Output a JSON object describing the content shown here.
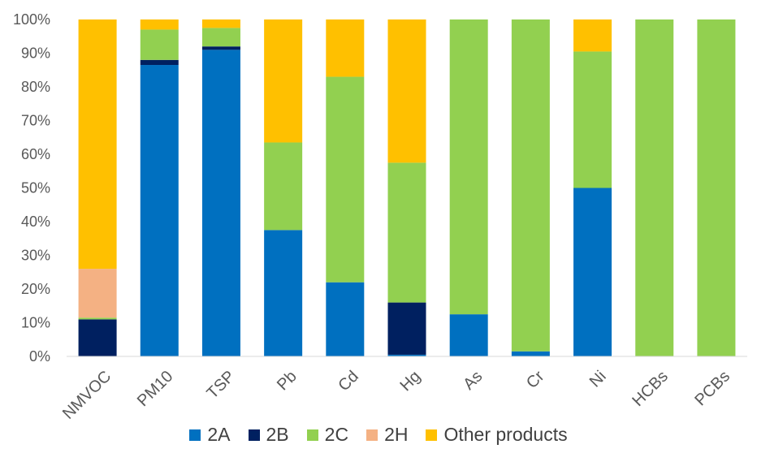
{
  "chart_data": {
    "type": "bar",
    "stacked": true,
    "percent": true,
    "categories": [
      "NMVOC",
      "PM10",
      "TSP",
      "Pb",
      "Cd",
      "Hg",
      "As",
      "Cr",
      "Ni",
      "HCBs",
      "PCBs"
    ],
    "series": [
      {
        "name": "2A",
        "color": "#0070C0",
        "values": [
          0,
          86.5,
          91,
          37.5,
          22,
          0.5,
          12.5,
          1.5,
          50,
          0,
          0
        ]
      },
      {
        "name": "2B",
        "color": "#002060",
        "values": [
          11,
          1.5,
          1,
          0,
          0,
          15.5,
          0,
          0,
          0,
          0,
          0
        ]
      },
      {
        "name": "2C",
        "color": "#92D050",
        "values": [
          0.5,
          9,
          5.5,
          26,
          61,
          41.5,
          87.5,
          98.5,
          40.5,
          100,
          100
        ]
      },
      {
        "name": "2H",
        "color": "#F4B183",
        "values": [
          14.5,
          0,
          0,
          0,
          0,
          0,
          0,
          0,
          0,
          0,
          0
        ]
      },
      {
        "name": "Other products",
        "color": "#FFC000",
        "values": [
          74,
          3,
          2.5,
          36.5,
          17,
          42.5,
          0,
          0,
          9.5,
          0,
          0
        ]
      }
    ],
    "yticks": [
      "0%",
      "10%",
      "20%",
      "30%",
      "40%",
      "50%",
      "60%",
      "70%",
      "80%",
      "90%",
      "100%"
    ],
    "ylim": [
      0,
      100
    ],
    "grid": false,
    "legend_position": "bottom"
  }
}
